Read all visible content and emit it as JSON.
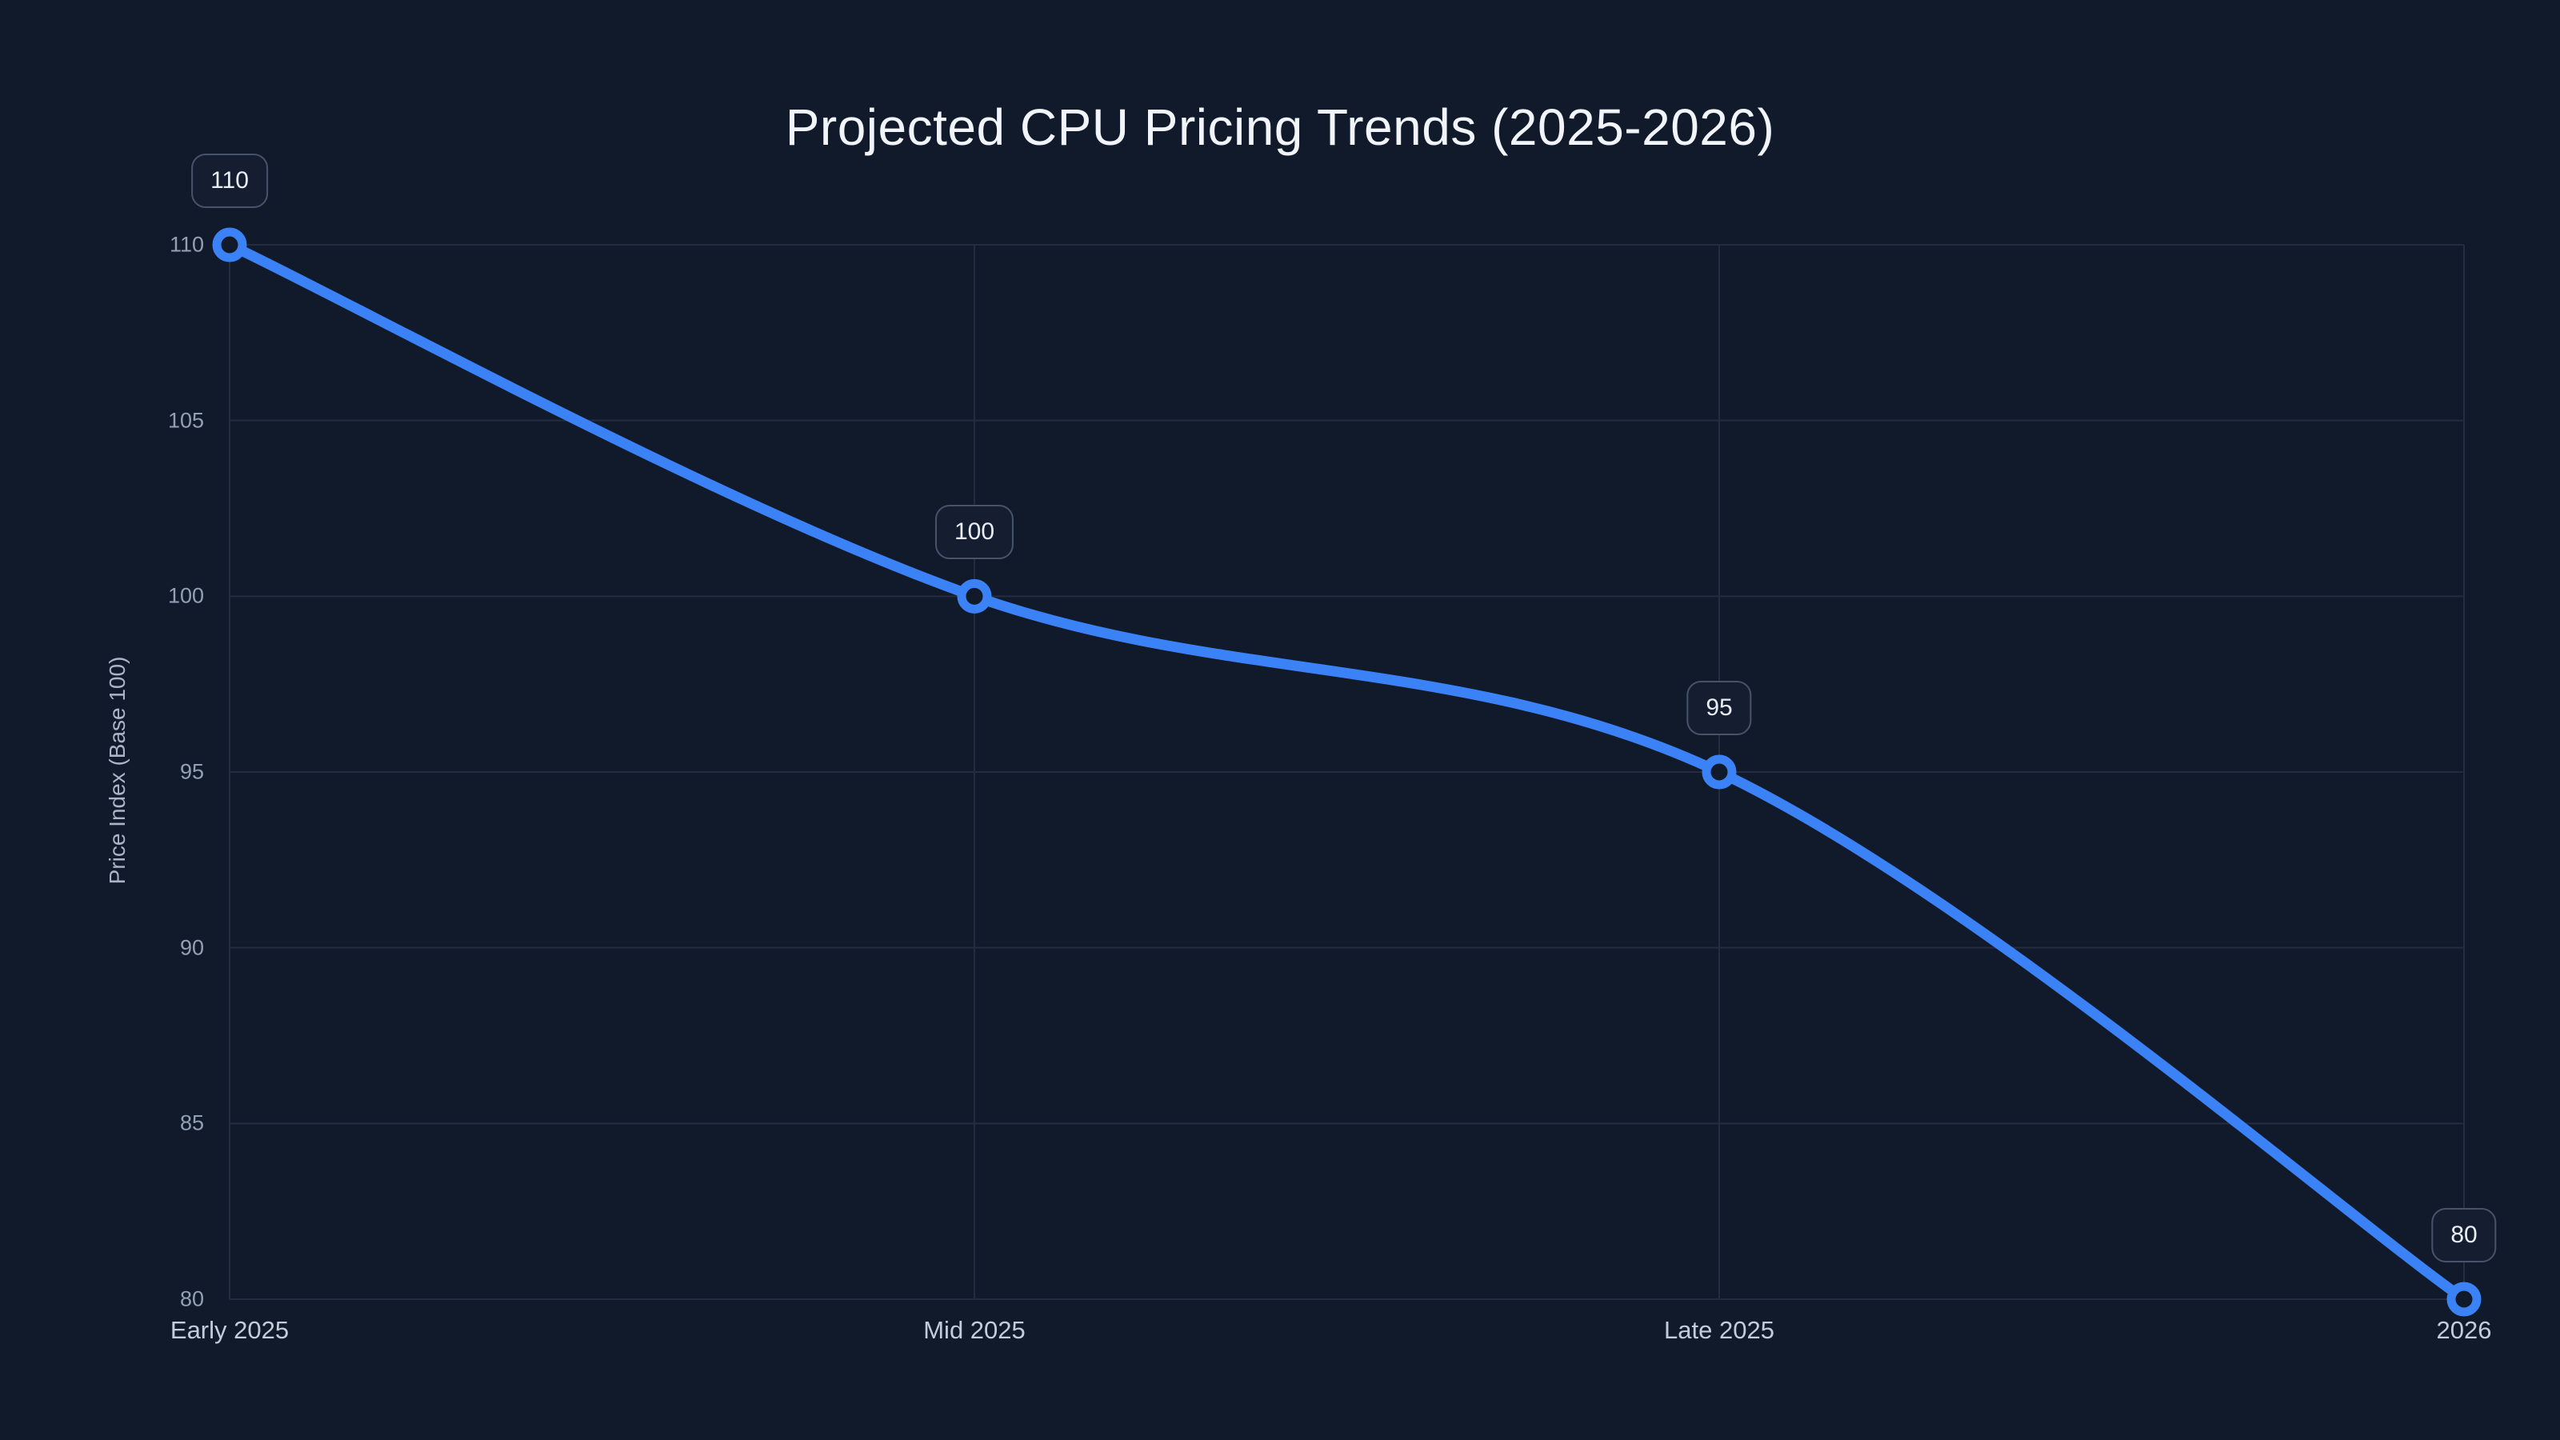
{
  "chart": {
    "title": "Projected CPU Pricing Trends (2025-2026)",
    "ylabel": "Price Index (Base 100)"
  },
  "chart_data": {
    "type": "line",
    "title": "Projected CPU Pricing Trends (2025-2026)",
    "xlabel": "",
    "ylabel": "Price Index (Base 100)",
    "categories": [
      "Early 2025",
      "Mid 2025",
      "Late 2025",
      "2026"
    ],
    "series": [
      {
        "name": "Price Index",
        "values": [
          110,
          100,
          95,
          80
        ]
      }
    ],
    "point_labels": [
      "110",
      "100",
      "95",
      "80"
    ],
    "ylim": [
      80,
      110
    ],
    "yticks": [
      110,
      105,
      100,
      95,
      90,
      85,
      80
    ],
    "grid": true,
    "legend": false,
    "curve": "smooth",
    "colors": {
      "background": "#111a2b",
      "line": "#3b82f6",
      "marker_ring": "#3b82f6",
      "marker_fill": "#111a2b",
      "grid": "#232d3f",
      "y_tick_text": "#93a0b4",
      "x_tick_text": "#c3cdda",
      "title_text": "#f1f5f9",
      "axis_title_text": "#a9b4c6",
      "label_box_bg": "#141e30",
      "label_box_border": "#46536a",
      "label_box_text": "#e9eef5"
    }
  }
}
